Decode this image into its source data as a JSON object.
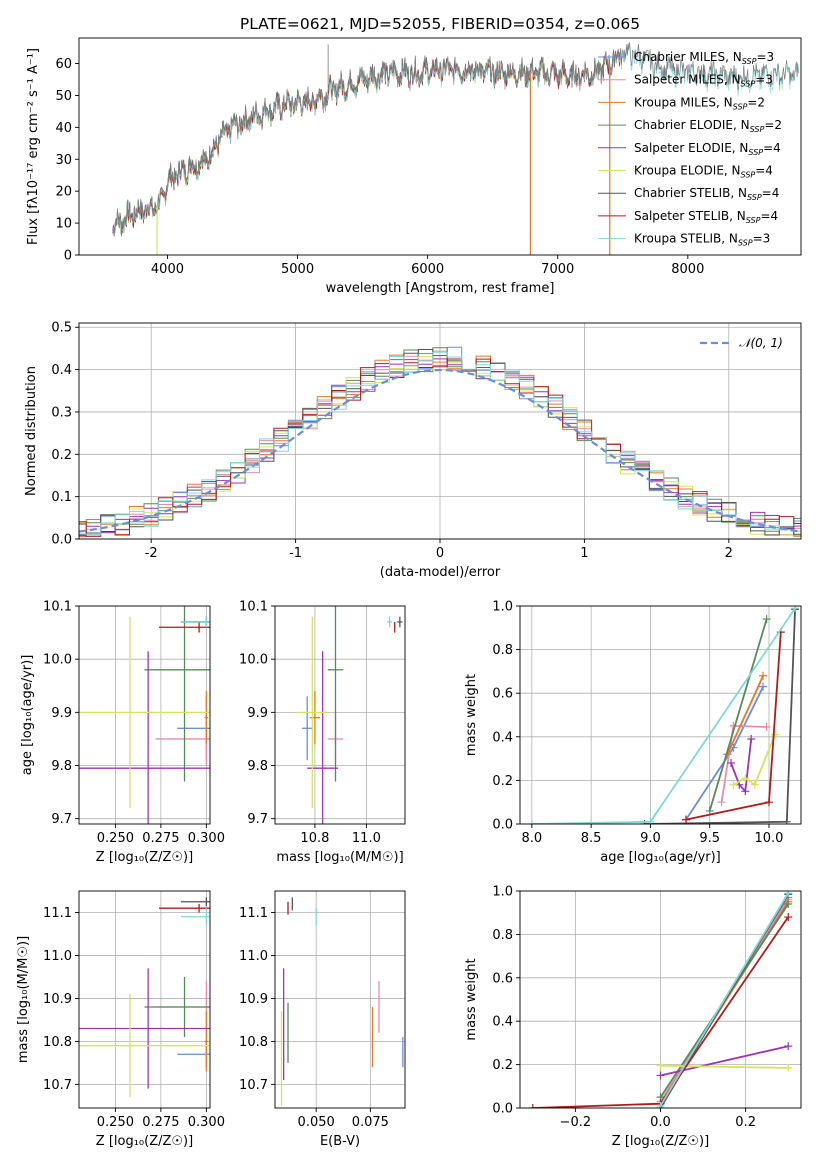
{
  "title": "PLATE=0621, MJD=52055, FIBERID=0354, z=0.065",
  "colors": {
    "Chabrier MILES": "#6a8fd8",
    "Salpeter MILES": "#e98bb1",
    "Kroupa MILES": "#e6782a",
    "Chabrier ELODIE": "#5a8a5a",
    "Salpeter ELODIE": "#9b35b8",
    "Kroupa ELODIE": "#d6e45a",
    "Chabrier STELIB": "#555555",
    "Salpeter STELIB": "#b01c1c",
    "Kroupa STELIB": "#7fd7d7"
  },
  "models": [
    "Chabrier MILES",
    "Salpeter MILES",
    "Kroupa MILES",
    "Chabrier ELODIE",
    "Salpeter ELODIE",
    "Kroupa ELODIE",
    "Chabrier STELIB",
    "Salpeter STELIB",
    "Kroupa STELIB"
  ],
  "chart_data": [
    {
      "id": "spectrum",
      "type": "line",
      "title": "PLATE=0621, MJD=52055, FIBERID=0354, z=0.065",
      "xlabel": "wavelength [Angstrom, rest frame]",
      "ylabel": "Flux [fλ10⁻¹⁷ erg cm⁻² s⁻¹ A⁻¹]",
      "xlim": [
        3320,
        8870
      ],
      "ylim": [
        0,
        68
      ],
      "xticks": [
        4000,
        5000,
        6000,
        7000,
        8000
      ],
      "yticks": [
        0,
        10,
        20,
        30,
        40,
        50,
        60
      ],
      "legend_position": "right",
      "legend": [
        {
          "name": "Chabrier MILES",
          "nssp": "3"
        },
        {
          "name": "Salpeter MILES",
          "nssp": "3"
        },
        {
          "name": "Kroupa MILES",
          "nssp": "2"
        },
        {
          "name": "Chabrier ELODIE",
          "nssp": "2"
        },
        {
          "name": "Salpeter ELODIE",
          "nssp": "4"
        },
        {
          "name": "Kroupa ELODIE",
          "nssp": "4"
        },
        {
          "name": "Chabrier STELIB",
          "nssp": "4"
        },
        {
          "name": "Salpeter STELIB",
          "nssp": "4"
        },
        {
          "name": "Kroupa STELIB",
          "nssp": "3"
        }
      ],
      "continuum": [
        [
          3580,
          9
        ],
        [
          3700,
          12
        ],
        [
          3800,
          14
        ],
        [
          3900,
          15
        ],
        [
          3960,
          17
        ],
        [
          4000,
          23
        ],
        [
          4100,
          26
        ],
        [
          4200,
          28
        ],
        [
          4300,
          30
        ],
        [
          4400,
          36
        ],
        [
          4500,
          40
        ],
        [
          4700,
          44
        ],
        [
          4900,
          47
        ],
        [
          5100,
          48
        ],
        [
          5300,
          52
        ],
        [
          5500,
          55
        ],
        [
          5700,
          57
        ],
        [
          5900,
          57
        ],
        [
          6100,
          58
        ],
        [
          6300,
          58
        ],
        [
          6500,
          57
        ],
        [
          6700,
          57
        ],
        [
          6900,
          57
        ],
        [
          7100,
          56
        ],
        [
          7300,
          57
        ],
        [
          7500,
          63
        ],
        [
          7600,
          62
        ],
        [
          7800,
          58
        ],
        [
          8000,
          57
        ],
        [
          8200,
          56
        ],
        [
          8400,
          55
        ],
        [
          8600,
          56
        ],
        [
          8800,
          56
        ]
      ],
      "data_spikes": [
        {
          "x": 5235,
          "y": 66
        }
      ],
      "model_dropouts": [
        {
          "x": 3920,
          "y": 0
        },
        {
          "x": 6790,
          "y": 0
        },
        {
          "x": 7400,
          "y": 0
        }
      ]
    },
    {
      "id": "residuals",
      "type": "histogram",
      "xlabel": "(data-model)/error",
      "ylabel": "Normed distribution",
      "xlim": [
        -2.5,
        2.5
      ],
      "ylim": [
        0,
        0.51
      ],
      "xticks": [
        -2,
        -1,
        0,
        1,
        2
      ],
      "yticks": [
        0.0,
        0.1,
        0.2,
        0.3,
        0.4,
        0.5
      ],
      "legend": "𝒩(0, 1)",
      "legend_position": "top-right",
      "gaussian": {
        "mean": 0,
        "sigma": 1,
        "color": "#6a8fd8"
      }
    },
    {
      "id": "age-vs-Z",
      "type": "scatter",
      "xlabel": "Z [log₁₀(Z/Z☉)]",
      "ylabel": "age  [log₁₀(age/yr)]",
      "xlim": [
        0.23,
        0.302
      ],
      "ylim": [
        9.69,
        10.1
      ],
      "xticks": [
        0.25,
        0.275,
        0.3
      ],
      "xticklabels": [
        "0.250",
        "0.275",
        "0.300"
      ],
      "yticks": [
        9.7,
        9.8,
        9.9,
        10.0,
        10.1
      ],
      "points": [
        {
          "model": "Chabrier MILES",
          "x": 0.3,
          "xerr": 0.016,
          "y": 9.87,
          "yerr": 0.06
        },
        {
          "model": "Salpeter MILES",
          "x": 0.3,
          "xerr": 0.028,
          "y": 9.85,
          "yerr": 0.05
        },
        {
          "model": "Kroupa MILES",
          "x": 0.3,
          "xerr": 0.001,
          "y": 9.89,
          "yerr": 0.05
        },
        {
          "model": "Chabrier ELODIE",
          "x": 0.288,
          "xerr": 0.022,
          "y": 9.98,
          "yerr": 0.21
        },
        {
          "model": "Salpeter ELODIE",
          "x": 0.268,
          "xerr": 0.038,
          "y": 9.795,
          "yerr": 0.22
        },
        {
          "model": "Kroupa ELODIE",
          "x": 0.258,
          "xerr": 0.045,
          "y": 9.9,
          "yerr": 0.18
        },
        {
          "model": "Chabrier STELIB",
          "x": 0.3,
          "xerr": 0.014,
          "y": 10.07,
          "yerr": 0.01
        },
        {
          "model": "Salpeter STELIB",
          "x": 0.296,
          "xerr": 0.022,
          "y": 10.06,
          "yerr": 0.01
        },
        {
          "model": "Kroupa STELIB",
          "x": 0.3,
          "xerr": 0.014,
          "y": 10.07,
          "yerr": 0.01
        }
      ]
    },
    {
      "id": "age-vs-mass",
      "type": "scatter",
      "xlabel": "mass [log₁₀(M/M☉)]",
      "ylabel": "",
      "xlim": [
        10.645,
        11.15
      ],
      "ylim": [
        9.69,
        10.1
      ],
      "xticks": [
        10.8,
        11.0
      ],
      "xticklabels": [
        "10.8",
        "11.0"
      ],
      "yticks": [
        9.7,
        9.8,
        9.9,
        10.0,
        10.1
      ],
      "points": [
        {
          "model": "Chabrier MILES",
          "x": 10.77,
          "xerr": 0.02,
          "y": 9.87,
          "yerr": 0.06
        },
        {
          "model": "Salpeter MILES",
          "x": 10.88,
          "xerr": 0.03,
          "y": 9.85,
          "yerr": 0.05
        },
        {
          "model": "Kroupa MILES",
          "x": 10.8,
          "xerr": 0.02,
          "y": 9.89,
          "yerr": 0.05
        },
        {
          "model": "Chabrier ELODIE",
          "x": 10.88,
          "xerr": 0.03,
          "y": 9.98,
          "yerr": 0.21
        },
        {
          "model": "Salpeter ELODIE",
          "x": 10.83,
          "xerr": 0.06,
          "y": 9.795,
          "yerr": 0.22
        },
        {
          "model": "Kroupa ELODIE",
          "x": 10.79,
          "xerr": 0.06,
          "y": 9.9,
          "yerr": 0.18
        },
        {
          "model": "Chabrier STELIB",
          "x": 11.13,
          "xerr": 0.01,
          "y": 10.07,
          "yerr": 0.01
        },
        {
          "model": "Salpeter STELIB",
          "x": 11.11,
          "xerr": 0.002,
          "y": 10.06,
          "yerr": 0.01
        },
        {
          "model": "Kroupa STELIB",
          "x": 11.09,
          "xerr": 0.01,
          "y": 10.07,
          "yerr": 0.01
        }
      ]
    },
    {
      "id": "mass-weight-vs-age",
      "type": "line",
      "xlabel": "age  [log₁₀(age/yr)]",
      "ylabel": "mass weight",
      "xlim": [
        7.9,
        10.27
      ],
      "ylim": [
        0,
        1.0
      ],
      "xticks": [
        8.0,
        8.5,
        9.0,
        9.5,
        10.0
      ],
      "xticklabels": [
        "8.0",
        "8.5",
        "9.0",
        "9.5",
        "10.0"
      ],
      "yticks": [
        0.0,
        0.2,
        0.4,
        0.6,
        0.8,
        1.0
      ],
      "series": [
        {
          "model": "Chabrier MILES",
          "x": [
            9.3,
            9.7,
            9.95
          ],
          "y": [
            0.02,
            0.35,
            0.63
          ]
        },
        {
          "model": "Salpeter MILES",
          "x": [
            9.6,
            9.7,
            9.98
          ],
          "y": [
            0.1,
            0.45,
            0.445
          ]
        },
        {
          "model": "Kroupa MILES",
          "x": [
            9.65,
            9.95
          ],
          "y": [
            0.32,
            0.68
          ]
        },
        {
          "model": "Chabrier ELODIE",
          "x": [
            9.5,
            9.98
          ],
          "y": [
            0.06,
            0.94
          ]
        },
        {
          "model": "Salpeter ELODIE",
          "x": [
            9.68,
            9.75,
            9.8,
            9.85
          ],
          "y": [
            0.28,
            0.18,
            0.15,
            0.39
          ]
        },
        {
          "model": "Kroupa ELODIE",
          "x": [
            9.7,
            9.8,
            9.88,
            10.05
          ],
          "y": [
            0.18,
            0.21,
            0.18,
            0.41
          ]
        },
        {
          "model": "Chabrier STELIB",
          "x": [
            8.95,
            10.15,
            10.22
          ],
          "y": [
            0.0,
            0.01,
            0.985
          ]
        },
        {
          "model": "Salpeter STELIB",
          "x": [
            9.3,
            10.0,
            10.1
          ],
          "y": [
            0.02,
            0.1,
            0.88
          ]
        },
        {
          "model": "Kroupa STELIB",
          "x": [
            8.0,
            9.0,
            10.22
          ],
          "y": [
            0.0,
            0.01,
            0.99
          ]
        }
      ]
    },
    {
      "id": "mass-vs-Z",
      "type": "scatter",
      "xlabel": "Z [log₁₀(Z/Z☉)]",
      "ylabel": "mass [log₁₀(M/M☉)]",
      "xlim": [
        0.23,
        0.302
      ],
      "ylim": [
        10.645,
        11.15
      ],
      "xticks": [
        0.25,
        0.275,
        0.3
      ],
      "xticklabels": [
        "0.250",
        "0.275",
        "0.300"
      ],
      "yticks": [
        10.7,
        10.8,
        10.9,
        11.0,
        11.1
      ],
      "points": [
        {
          "model": "Chabrier MILES",
          "x": 0.3,
          "xerr": 0.016,
          "y": 10.77,
          "yerr": 0.03
        },
        {
          "model": "Salpeter MILES",
          "x": 0.3,
          "xerr": 0.028,
          "y": 10.88,
          "yerr": 0.06
        },
        {
          "model": "Kroupa MILES",
          "x": 0.3,
          "xerr": 0.001,
          "y": 10.8,
          "yerr": 0.07
        },
        {
          "model": "Chabrier ELODIE",
          "x": 0.288,
          "xerr": 0.022,
          "y": 10.88,
          "yerr": 0.07
        },
        {
          "model": "Salpeter ELODIE",
          "x": 0.268,
          "xerr": 0.038,
          "y": 10.83,
          "yerr": 0.14
        },
        {
          "model": "Kroupa ELODIE",
          "x": 0.258,
          "xerr": 0.045,
          "y": 10.79,
          "yerr": 0.12
        },
        {
          "model": "Chabrier STELIB",
          "x": 0.3,
          "xerr": 0.014,
          "y": 11.125,
          "yerr": 0.01
        },
        {
          "model": "Salpeter STELIB",
          "x": 0.296,
          "xerr": 0.022,
          "y": 11.11,
          "yerr": 0.01
        },
        {
          "model": "Kroupa STELIB",
          "x": 0.3,
          "xerr": 0.014,
          "y": 11.09,
          "yerr": 0.02
        }
      ]
    },
    {
      "id": "mass-vs-EBV",
      "type": "scatter",
      "xlabel": "E(B-V)",
      "ylabel": "",
      "xlim": [
        0.031,
        0.091
      ],
      "ylim": [
        10.645,
        11.15
      ],
      "xticks": [
        0.05,
        0.075
      ],
      "xticklabels": [
        "0.050",
        "0.075"
      ],
      "yticks": [
        10.7,
        10.8,
        10.9,
        11.0,
        11.1
      ],
      "points": [
        {
          "model": "Chabrier MILES",
          "x": 0.09,
          "y": 10.775,
          "yerr": 0.035
        },
        {
          "model": "Salpeter MILES",
          "x": 0.079,
          "y": 10.88,
          "yerr": 0.06
        },
        {
          "model": "Kroupa MILES",
          "x": 0.076,
          "y": 10.81,
          "yerr": 0.07
        },
        {
          "model": "Chabrier ELODIE",
          "x": 0.037,
          "y": 10.82,
          "yerr": 0.07
        },
        {
          "model": "Salpeter ELODIE",
          "x": 0.035,
          "y": 10.84,
          "yerr": 0.13
        },
        {
          "model": "Kroupa ELODIE",
          "x": 0.034,
          "y": 10.76,
          "yerr": 0.11
        },
        {
          "model": "Chabrier STELIB",
          "x": 0.039,
          "y": 11.12,
          "yerr": 0.015
        },
        {
          "model": "Salpeter STELIB",
          "x": 0.037,
          "y": 11.11,
          "yerr": 0.015
        },
        {
          "model": "Kroupa STELIB",
          "x": 0.05,
          "y": 11.09,
          "yerr": 0.02
        }
      ]
    },
    {
      "id": "mass-weight-vs-Z",
      "type": "line",
      "xlabel": "Z [log₁₀(Z/Z☉)]",
      "ylabel": "mass weight",
      "xlim": [
        -0.33,
        0.33
      ],
      "ylim": [
        0,
        1.0
      ],
      "xticks": [
        -0.2,
        0.0,
        0.2
      ],
      "xticklabels": [
        "−0.2",
        "0.0",
        "0.2"
      ],
      "yticks": [
        0.0,
        0.2,
        0.4,
        0.6,
        0.8,
        1.0
      ],
      "series": [
        {
          "model": "Chabrier MILES",
          "x": [
            0.0,
            0.3
          ],
          "y": [
            0.02,
            0.97
          ]
        },
        {
          "model": "Salpeter MILES",
          "x": [
            0.0,
            0.3
          ],
          "y": [
            0.03,
            0.96
          ]
        },
        {
          "model": "Kroupa MILES",
          "x": [
            0.0,
            0.3
          ],
          "y": [
            0.02,
            0.95
          ]
        },
        {
          "model": "Chabrier ELODIE",
          "x": [
            0.0,
            0.3
          ],
          "y": [
            0.05,
            0.94
          ]
        },
        {
          "model": "Salpeter ELODIE",
          "x": [
            0.0,
            0.3
          ],
          "y": [
            0.15,
            0.285
          ]
        },
        {
          "model": "Kroupa ELODIE",
          "x": [
            0.0,
            0.3
          ],
          "y": [
            0.195,
            0.185
          ]
        },
        {
          "model": "Chabrier STELIB",
          "x": [
            0.0,
            0.3
          ],
          "y": [
            0.0,
            0.985
          ]
        },
        {
          "model": "Salpeter STELIB",
          "x": [
            -0.3,
            0.0,
            0.3
          ],
          "y": [
            0.0,
            0.02,
            0.88
          ]
        },
        {
          "model": "Kroupa STELIB",
          "x": [
            0.0,
            0.3
          ],
          "y": [
            0.01,
            0.99
          ]
        }
      ]
    }
  ]
}
